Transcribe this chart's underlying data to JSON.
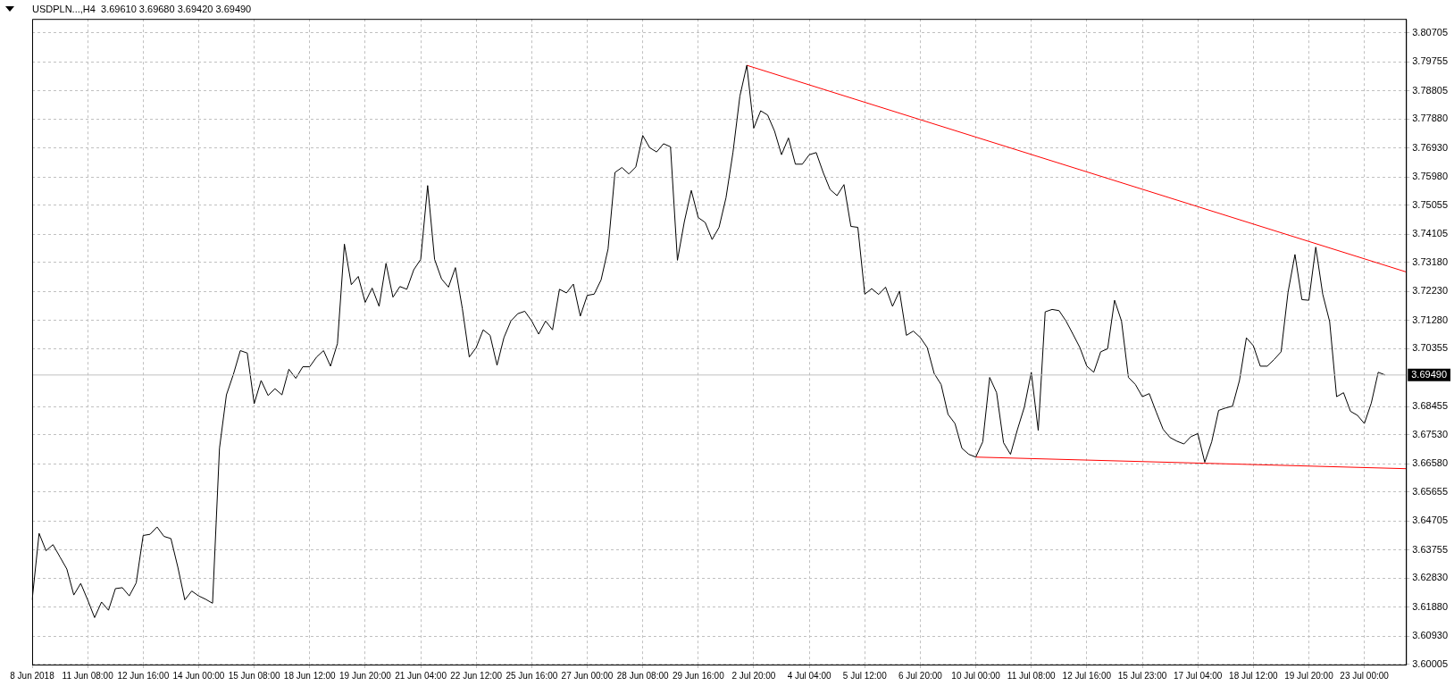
{
  "chart_data": {
    "type": "line",
    "title": "USDPLN...,H4  3.69610 3.69680 3.69420 3.69490",
    "categories": [
      "8 Jun 2018",
      null,
      null,
      null,
      null,
      null,
      null,
      null,
      "11 Jun 08:00",
      null,
      null,
      null,
      null,
      null,
      null,
      null,
      "12 Jun 16:00",
      null,
      null,
      null,
      null,
      null,
      null,
      null,
      "14 Jun 00:00",
      null,
      null,
      null,
      null,
      null,
      null,
      null,
      "15 Jun 08:00",
      null,
      null,
      null,
      null,
      null,
      null,
      null,
      "18 Jun 12:00",
      null,
      null,
      null,
      null,
      null,
      null,
      null,
      "19 Jun 20:00",
      null,
      null,
      null,
      null,
      null,
      null,
      null,
      "21 Jun 04:00",
      null,
      null,
      null,
      null,
      null,
      null,
      null,
      "22 Jun 12:00",
      null,
      null,
      null,
      null,
      null,
      null,
      null,
      "25 Jun 16:00",
      null,
      null,
      null,
      null,
      null,
      null,
      null,
      "27 Jun 00:00",
      null,
      null,
      null,
      null,
      null,
      null,
      null,
      "28 Jun 08:00",
      null,
      null,
      null,
      null,
      null,
      null,
      null,
      "29 Jun 16:00",
      null,
      null,
      null,
      null,
      null,
      null,
      null,
      "2 Jul 20:00",
      null,
      null,
      null,
      null,
      null,
      null,
      null,
      "4 Jul 04:00",
      null,
      null,
      null,
      null,
      null,
      null,
      null,
      "5 Jul 12:00",
      null,
      null,
      null,
      null,
      null,
      null,
      null,
      "6 Jul 20:00",
      null,
      null,
      null,
      null,
      null,
      null,
      null,
      "10 Jul 00:00",
      null,
      null,
      null,
      null,
      null,
      null,
      null,
      "11 Jul 08:00",
      null,
      null,
      null,
      null,
      null,
      null,
      null,
      "12 Jul 16:00",
      null,
      null,
      null,
      null,
      null,
      null,
      null,
      "15 Jul 23:00",
      null,
      null,
      null,
      null,
      null,
      null,
      null,
      "17 Jul 04:00",
      null,
      null,
      null,
      null,
      null,
      null,
      null,
      "18 Jul 12:00",
      null,
      null,
      null,
      null,
      null,
      null,
      null,
      "19 Jul 20:00",
      null,
      null,
      null,
      null,
      null,
      null,
      null,
      "23 Jul 00:00",
      null,
      null,
      null,
      null,
      null,
      null
    ],
    "series": [
      {
        "color": "#000000",
        "values": [
          3.6212,
          3.643,
          3.6373,
          3.6393,
          3.6353,
          3.6313,
          3.6228,
          3.6266,
          3.6212,
          3.6154,
          3.6205,
          3.6178,
          3.6249,
          3.6252,
          3.6225,
          3.6268,
          3.6423,
          3.6427,
          3.6451,
          3.642,
          3.6413,
          3.6319,
          3.6212,
          3.6241,
          3.6225,
          3.6214,
          3.6201,
          3.6709,
          3.6884,
          3.6951,
          3.7029,
          3.7021,
          3.6855,
          3.6931,
          3.6882,
          3.6904,
          3.6884,
          3.6968,
          3.6938,
          3.6976,
          3.6976,
          3.7008,
          3.7029,
          3.6978,
          3.7052,
          3.7378,
          3.7245,
          3.7272,
          3.7187,
          3.7234,
          3.7174,
          3.7315,
          3.7204,
          3.7239,
          3.723,
          3.7294,
          3.7328,
          3.757,
          3.7328,
          3.7264,
          3.7237,
          3.7301,
          3.7167,
          3.7008,
          3.7039,
          3.7097,
          3.7079,
          3.6981,
          3.7072,
          3.7126,
          3.715,
          3.7158,
          3.7126,
          3.7083,
          3.7126,
          3.7097,
          3.723,
          3.7218,
          3.7247,
          3.7142,
          3.721,
          3.7214,
          3.7261,
          3.7362,
          3.7613,
          3.7629,
          3.7608,
          3.7631,
          3.7734,
          3.7694,
          3.768,
          3.7707,
          3.7697,
          3.7325,
          3.7452,
          3.7554,
          3.7465,
          3.7449,
          3.7393,
          3.7433,
          3.753,
          3.7678,
          3.7863,
          3.7964,
          3.7758,
          3.7815,
          3.7801,
          3.7748,
          3.7671,
          3.7726,
          3.764,
          3.764,
          3.7671,
          3.7678,
          3.7613,
          3.7557,
          3.7537,
          3.7573,
          3.7436,
          3.7433,
          3.7214,
          3.7232,
          3.7213,
          3.7237,
          3.7174,
          3.7224,
          3.7079,
          3.7093,
          3.7072,
          3.7039,
          3.6954,
          3.6918,
          3.682,
          3.679,
          3.6709,
          3.6689,
          3.668,
          3.673,
          3.6941,
          3.6891,
          3.6727,
          3.6689,
          3.677,
          3.6844,
          3.6958,
          3.6767,
          3.7156,
          3.7164,
          3.716,
          3.7126,
          3.7083,
          3.7039,
          3.6978,
          3.6958,
          3.7025,
          3.7035,
          3.7194,
          3.7126,
          3.6941,
          3.6918,
          3.6878,
          3.6888,
          3.6828,
          3.6771,
          3.6744,
          3.6732,
          3.6723,
          3.6747,
          3.6757,
          3.6663,
          3.673,
          3.6833,
          3.6841,
          3.6847,
          3.6931,
          3.7071,
          3.7045,
          3.6978,
          3.6978,
          3.7,
          3.7025,
          3.722,
          3.7344,
          3.7196,
          3.7194,
          3.7368,
          3.7214,
          3.7124,
          3.6878,
          3.6891,
          3.683,
          3.6817,
          3.679,
          3.6857,
          3.6958,
          3.6949,
          null,
          null,
          null
        ]
      },
      {
        "type": "line",
        "color": "#ff0000",
        "values": [
          null,
          null,
          null,
          null,
          null,
          null,
          null,
          null,
          null,
          null,
          null,
          null,
          null,
          null,
          null,
          null,
          null,
          null,
          null,
          null,
          null,
          null,
          null,
          null,
          null,
          null,
          null,
          null,
          null,
          null,
          null,
          null,
          null,
          null,
          null,
          null,
          null,
          null,
          null,
          null,
          null,
          null,
          null,
          null,
          null,
          null,
          null,
          null,
          null,
          null,
          null,
          null,
          null,
          null,
          null,
          null,
          null,
          null,
          null,
          null,
          null,
          null,
          null,
          null,
          null,
          null,
          null,
          null,
          null,
          null,
          null,
          null,
          null,
          null,
          null,
          null,
          null,
          null,
          null,
          null,
          null,
          null,
          null,
          null,
          null,
          null,
          null,
          null,
          null,
          null,
          null,
          null,
          null,
          null,
          null,
          null,
          null,
          null,
          null,
          null,
          null,
          null,
          null,
          3.7964,
          null,
          null,
          null,
          null,
          null,
          null,
          null,
          null,
          null,
          null,
          null,
          null,
          null,
          null,
          null,
          null,
          null,
          null,
          null,
          null,
          null,
          null,
          null,
          null,
          null,
          null,
          null,
          null,
          null,
          null,
          null,
          null,
          null,
          null,
          null,
          null,
          null,
          null,
          null,
          null,
          null,
          null,
          null,
          null,
          null,
          null,
          null,
          null,
          null,
          null,
          null,
          null,
          null,
          null,
          null,
          null,
          null,
          null,
          null,
          null,
          null,
          null,
          null,
          null,
          null,
          null,
          null,
          null,
          null,
          null,
          null,
          null,
          null,
          null,
          null,
          null,
          null,
          null,
          null,
          null,
          null,
          null,
          null,
          null,
          null,
          null,
          null,
          null,
          null,
          null,
          null,
          null,
          null,
          null,
          3.7287
        ]
      },
      {
        "type": "line",
        "color": "#ff0000",
        "values": [
          null,
          null,
          null,
          null,
          null,
          null,
          null,
          null,
          null,
          null,
          null,
          null,
          null,
          null,
          null,
          null,
          null,
          null,
          null,
          null,
          null,
          null,
          null,
          null,
          null,
          null,
          null,
          null,
          null,
          null,
          null,
          null,
          null,
          null,
          null,
          null,
          null,
          null,
          null,
          null,
          null,
          null,
          null,
          null,
          null,
          null,
          null,
          null,
          null,
          null,
          null,
          null,
          null,
          null,
          null,
          null,
          null,
          null,
          null,
          null,
          null,
          null,
          null,
          null,
          null,
          null,
          null,
          null,
          null,
          null,
          null,
          null,
          null,
          null,
          null,
          null,
          null,
          null,
          null,
          null,
          null,
          null,
          null,
          null,
          null,
          null,
          null,
          null,
          null,
          null,
          null,
          null,
          null,
          null,
          null,
          null,
          null,
          null,
          null,
          null,
          null,
          null,
          null,
          null,
          null,
          null,
          null,
          null,
          null,
          null,
          null,
          null,
          null,
          null,
          null,
          null,
          null,
          null,
          null,
          null,
          null,
          null,
          null,
          null,
          null,
          null,
          null,
          null,
          null,
          null,
          null,
          null,
          null,
          null,
          null,
          null,
          3.668,
          null,
          null,
          null,
          null,
          null,
          null,
          null,
          null,
          null,
          null,
          null,
          null,
          null,
          null,
          null,
          null,
          null,
          null,
          null,
          null,
          null,
          null,
          null,
          null,
          null,
          null,
          null,
          null,
          null,
          null,
          null,
          null,
          null,
          null,
          null,
          null,
          null,
          null,
          null,
          null,
          null,
          null,
          null,
          null,
          null,
          null,
          null,
          null,
          null,
          null,
          null,
          null,
          null,
          null,
          null,
          null,
          null,
          null,
          null,
          null,
          null,
          3.6642
        ]
      }
    ],
    "ylim": [
      3.6,
      3.8116
    ],
    "yticks": [
      3.80705,
      3.79755,
      3.78805,
      {
        "value": 3.7788,
        "label": "3.77880"
      },
      {
        "value": 3.7693,
        "label": "3.76930"
      },
      {
        "value": 3.7598,
        "label": "3.75980"
      },
      3.75055,
      3.74105,
      {
        "value": 3.7318,
        "label": "3.73180"
      },
      {
        "value": 3.7223,
        "label": "3.72230"
      },
      {
        "value": 3.7128,
        "label": "3.71280"
      },
      3.70355,
      3.68455,
      {
        "value": 3.6753,
        "label": "3.67530"
      },
      {
        "value": 3.6658,
        "label": "3.66580"
      },
      3.65655,
      3.64705,
      3.63755,
      {
        "value": 3.6283,
        "label": "3.62830"
      },
      {
        "value": 3.6188,
        "label": "3.61880"
      },
      {
        "value": 3.6093,
        "label": "3.60930"
      },
      3.60005
    ],
    "ref_lines": [
      {
        "axis": "y",
        "value": 3.6949,
        "label": "3.69490",
        "color": "#c0c0c0"
      }
    ],
    "grid": true,
    "legend": false,
    "marker": "none",
    "line_style": "solid"
  }
}
